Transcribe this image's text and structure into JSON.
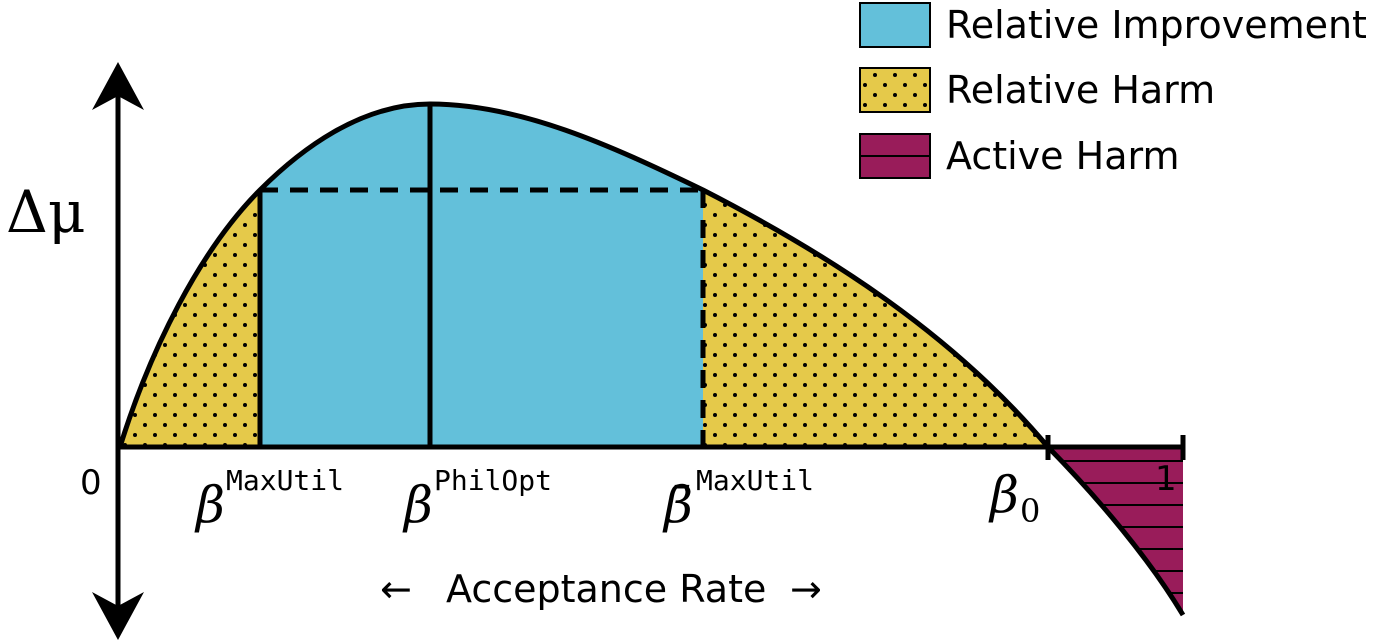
{
  "legend": {
    "items": [
      {
        "label": "Relative Improvement",
        "pattern": "solid",
        "color": "#63c0da"
      },
      {
        "label": "Relative Harm",
        "pattern": "dots",
        "color": "#e5c94a"
      },
      {
        "label": "Active Harm",
        "pattern": "stripes",
        "color": "#991c5a"
      }
    ]
  },
  "axes": {
    "y_label": "Δμ",
    "x_title": "Acceptance Rate",
    "x_title_left_arrow": "←",
    "x_title_right_arrow": "→",
    "origin_label": "0",
    "end_label": "1"
  },
  "markers": {
    "max_util": {
      "symbol": "β",
      "superscript": "MaxUtil"
    },
    "phil_opt": {
      "symbol": "β",
      "superscript": "PhilOpt"
    },
    "max_util_bar": {
      "symbol": "β̄",
      "superscript": "MaxUtil"
    },
    "beta_zero": {
      "symbol": "β",
      "subscript": "0"
    }
  },
  "colors": {
    "improvement": "#63c0da",
    "harm": "#e5c94a",
    "active_harm": "#991c5a",
    "stroke": "#000000"
  }
}
